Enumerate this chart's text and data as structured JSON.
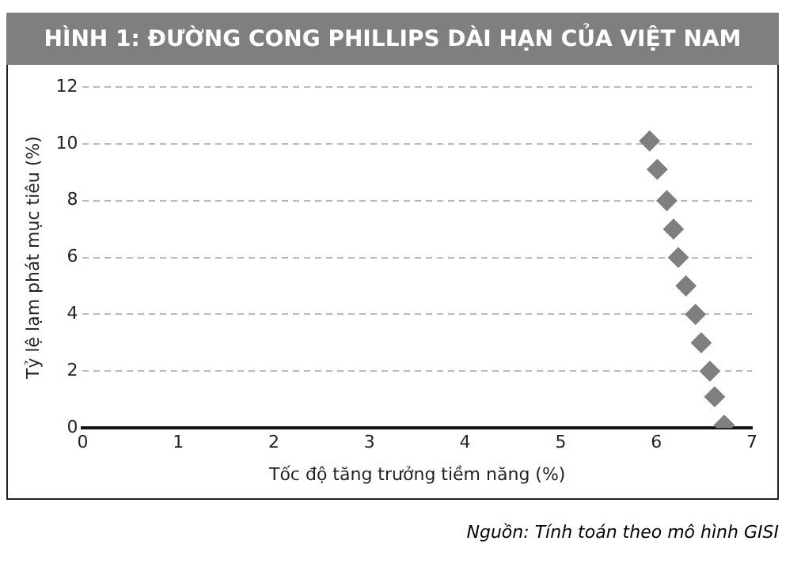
{
  "chart_data": {
    "type": "scatter",
    "title": "HÌNH 1: ĐƯỜNG CONG PHILLIPS DÀI HẠN CỦA VIỆT NAM",
    "xlabel": "Tốc độ tăng trưởng tiềm năng (%)",
    "ylabel": "Tỷ lệ lạm phát mục tiêu (%)",
    "annotations": [
      "Nguồn: Tính toán theo mô hình GISI"
    ],
    "x": [
      5.93,
      6.01,
      6.11,
      6.18,
      6.23,
      6.31,
      6.41,
      6.47,
      6.56,
      6.61,
      6.71
    ],
    "series": [
      {
        "color": "#7f7f7f",
        "values": [
          10.1,
          9.1,
          8,
          7,
          6,
          5,
          4,
          3,
          2,
          1.1,
          0.1
        ]
      }
    ],
    "xlim": [
      0,
      7
    ],
    "xticks": [
      0,
      1,
      2,
      3,
      4,
      5,
      6,
      7
    ],
    "ylim": [
      0,
      12
    ],
    "yticks": [
      0,
      2,
      4,
      6,
      8,
      10,
      12
    ],
    "grid": "y",
    "marker": "diamond",
    "legend": false
  }
}
